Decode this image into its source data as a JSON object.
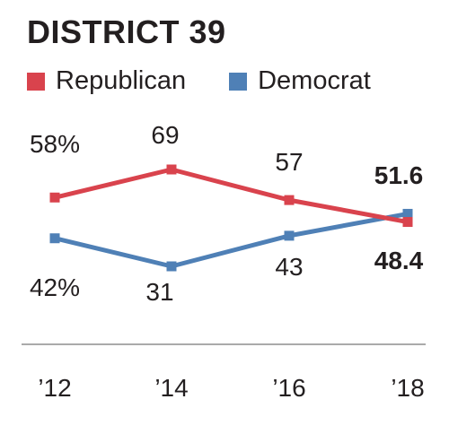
{
  "chart_data": {
    "type": "line",
    "title": "DISTRICT 39",
    "categories": [
      "’12",
      "’14",
      "’16",
      "’18"
    ],
    "series": [
      {
        "name": "Republican",
        "color": "#d9434d",
        "values": [
          58,
          69,
          57,
          48.4
        ],
        "labels": [
          "58%",
          "69",
          "57",
          "48.4"
        ]
      },
      {
        "name": "Democrat",
        "color": "#4f80b6",
        "values": [
          42,
          31,
          43,
          51.6
        ],
        "labels": [
          "42%",
          "31",
          "43",
          "51.6"
        ]
      }
    ],
    "ylim": [
      25,
      75
    ],
    "grid": false,
    "legend_position": "top-left",
    "axis_color": "#aaaaaa"
  }
}
